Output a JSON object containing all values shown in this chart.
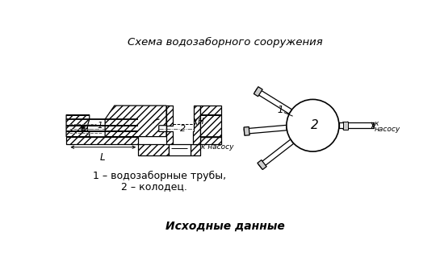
{
  "title": "Схема водозаборного сооружения",
  "label1": "1 – водозаборные трубы,",
  "label2": "2 – колодец.",
  "footer": "Исходные данные",
  "bg_color": "#ffffff",
  "line_color": "#000000",
  "title_fontsize": 9.5,
  "label_fontsize": 9,
  "footer_fontsize": 10,
  "lw": 0.9
}
